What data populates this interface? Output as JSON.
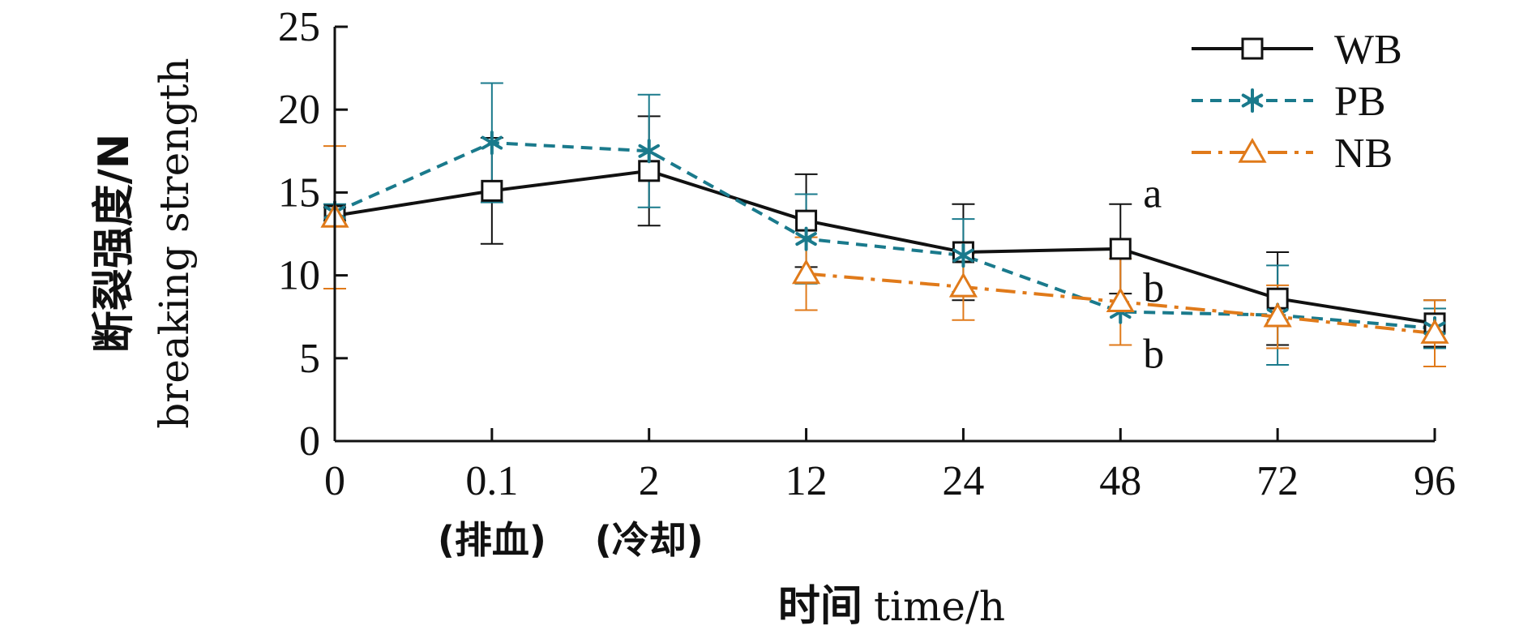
{
  "chart_data": {
    "type": "line",
    "categories": [
      "0",
      "0.1",
      "2",
      "12",
      "24",
      "48",
      "72",
      "96"
    ],
    "category_sublabels": [
      {
        "category": "0.1",
        "text": "(排血)"
      },
      {
        "category": "2",
        "text": "(冷却)"
      }
    ],
    "xlabel": {
      "zh": "时间",
      "en": "time/h"
    },
    "ylabel": {
      "zh": "断裂强度/N",
      "en": "breaking strength"
    },
    "ylim": [
      0,
      25
    ],
    "yticks": [
      "0",
      "5",
      "10",
      "15",
      "20",
      "25"
    ],
    "legend_position": "top-right",
    "grid": false,
    "series": [
      {
        "name": "WB",
        "color": "#111111",
        "marker": "square",
        "line": "solid",
        "values": [
          13.6,
          15.1,
          16.3,
          13.3,
          11.4,
          11.6,
          8.6,
          7.1
        ],
        "errors": [
          0.5,
          3.2,
          3.3,
          2.8,
          2.9,
          2.7,
          2.8,
          1.4
        ]
      },
      {
        "name": "PB",
        "color": "#1a7a8c",
        "marker": "asterisk",
        "line": "dashed",
        "values": [
          13.8,
          18.0,
          17.5,
          12.2,
          11.2,
          7.8,
          7.6,
          6.8
        ],
        "errors": [
          0.5,
          3.6,
          3.4,
          2.7,
          2.2,
          0.0,
          3.0,
          1.2
        ]
      },
      {
        "name": "NB",
        "color": "#e07a1a",
        "marker": "triangle",
        "line": "dashdot",
        "values": [
          13.5,
          null,
          null,
          10.1,
          9.3,
          8.4,
          7.5,
          6.5
        ],
        "errors": [
          4.3,
          null,
          null,
          2.2,
          2.0,
          2.6,
          1.9,
          2.0
        ]
      }
    ],
    "annotations": [
      {
        "category": "48",
        "value": 14.9,
        "text": "a"
      },
      {
        "category": "48",
        "value": 9.2,
        "text": "b"
      },
      {
        "category": "48",
        "value": 5.2,
        "text": "b"
      }
    ]
  }
}
